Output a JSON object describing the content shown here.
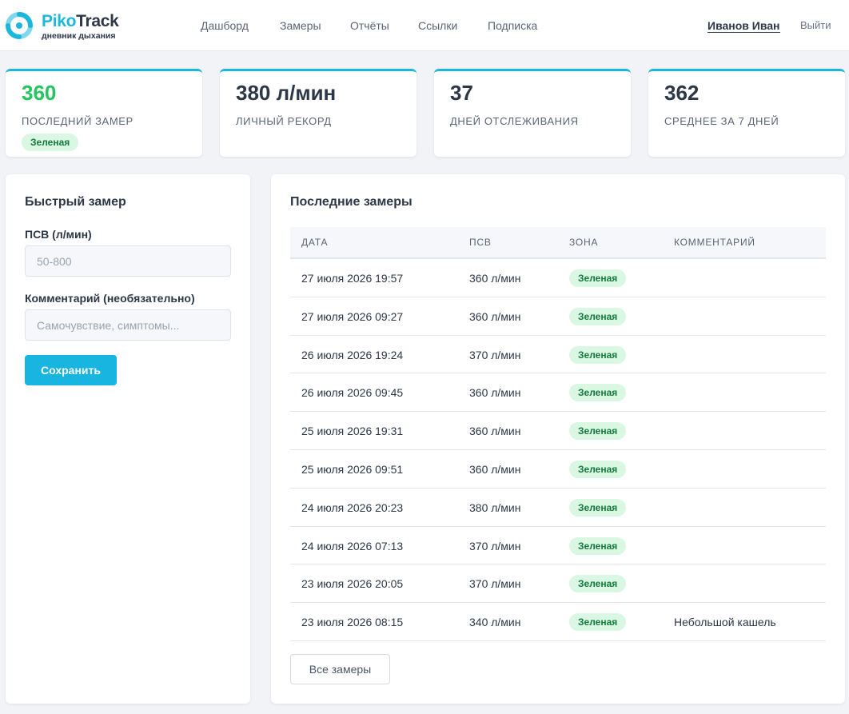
{
  "header": {
    "logo_part1": "Piko",
    "logo_part2": "Track",
    "logo_tagline": "дневник дыхания",
    "logo_icon": "piko-logo-icon",
    "nav": [
      "Дашборд",
      "Замеры",
      "Отчёты",
      "Ссылки",
      "Подписка"
    ],
    "user_name": "Иванов Иван",
    "logout_label": "Выйти"
  },
  "stats": [
    {
      "value": "360",
      "label": "Последний замер",
      "badge": "Зеленая"
    },
    {
      "value": "380 л/мин",
      "label": "Личный рекорд"
    },
    {
      "value": "37",
      "label": "Дней отслеживания"
    },
    {
      "value": "362",
      "label": "Среднее за 7 дней"
    }
  ],
  "quick_form": {
    "title": "Быстрый замер",
    "pef_label": "ПСВ (л/мин)",
    "pef_value": "",
    "pef_placeholder": "50-800",
    "comment_label": "Комментарий (необязательно)",
    "comment_value": "",
    "comment_placeholder": "Самочувствие, симптомы...",
    "save_label": "Сохранить"
  },
  "recent": {
    "title": "Последние замеры",
    "columns": [
      "Дата",
      "ПСВ",
      "Зона",
      "Комментарий"
    ],
    "rows": [
      {
        "date": "27 июля 2026 19:57",
        "pef": "360 л/мин",
        "zone": "Зеленая",
        "comment": ""
      },
      {
        "date": "27 июля 2026 09:27",
        "pef": "360 л/мин",
        "zone": "Зеленая",
        "comment": ""
      },
      {
        "date": "26 июля 2026 19:24",
        "pef": "370 л/мин",
        "zone": "Зеленая",
        "comment": ""
      },
      {
        "date": "26 июля 2026 09:45",
        "pef": "360 л/мин",
        "zone": "Зеленая",
        "comment": ""
      },
      {
        "date": "25 июля 2026 19:31",
        "pef": "360 л/мин",
        "zone": "Зеленая",
        "comment": ""
      },
      {
        "date": "25 июля 2026 09:51",
        "pef": "360 л/мин",
        "zone": "Зеленая",
        "comment": ""
      },
      {
        "date": "24 июля 2026 20:23",
        "pef": "380 л/мин",
        "zone": "Зеленая",
        "comment": ""
      },
      {
        "date": "24 июля 2026 07:13",
        "pef": "370 л/мин",
        "zone": "Зеленая",
        "comment": ""
      },
      {
        "date": "23 июля 2026 20:05",
        "pef": "370 л/мин",
        "zone": "Зеленая",
        "comment": ""
      },
      {
        "date": "23 июля 2026 08:15",
        "pef": "340 л/мин",
        "zone": "Зеленая",
        "comment": "Небольшой кашель"
      }
    ],
    "all_label": "Все замеры"
  },
  "colors": {
    "accent": "#17b5df",
    "zone_green": "#22c55e",
    "badge_bg": "#d9f7e3",
    "badge_text": "#137a3b"
  }
}
